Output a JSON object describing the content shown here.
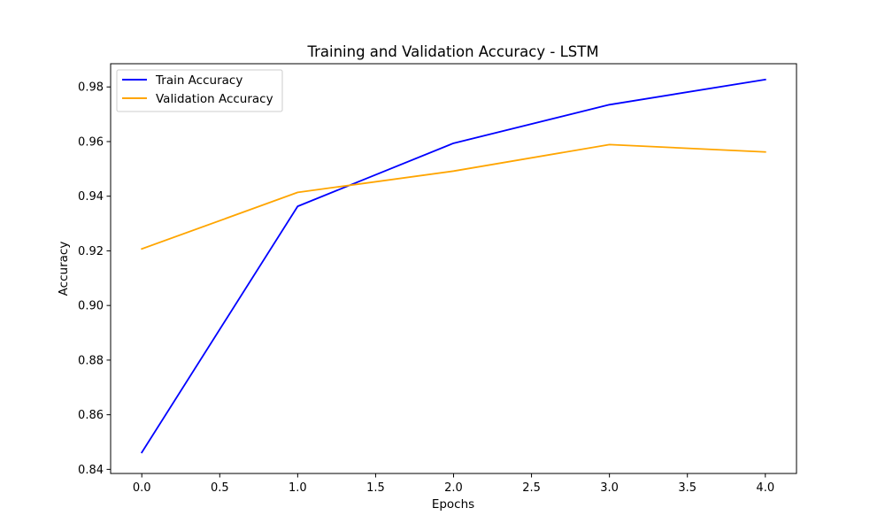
{
  "chart_data": {
    "type": "line",
    "title": "Training and Validation Accuracy - LSTM",
    "xlabel": "Epochs",
    "ylabel": "Accuracy",
    "x": [
      0,
      1,
      2,
      3,
      4
    ],
    "xlim": [
      -0.2,
      4.2
    ],
    "ylim": [
      0.8385,
      0.9885
    ],
    "xticks": [
      0.0,
      0.5,
      1.0,
      1.5,
      2.0,
      2.5,
      3.0,
      3.5,
      4.0
    ],
    "xtick_labels": [
      "0.0",
      "0.5",
      "1.0",
      "1.5",
      "2.0",
      "2.5",
      "3.0",
      "3.5",
      "4.0"
    ],
    "yticks": [
      0.84,
      0.86,
      0.88,
      0.9,
      0.92,
      0.94,
      0.96,
      0.98
    ],
    "ytick_labels": [
      "0.84",
      "0.86",
      "0.88",
      "0.90",
      "0.92",
      "0.94",
      "0.96",
      "0.98"
    ],
    "grid": false,
    "legend_position": "upper-left",
    "series": [
      {
        "name": "Train Accuracy",
        "color": "#0000ff",
        "values": [
          0.8462,
          0.9363,
          0.9594,
          0.9735,
          0.9827
        ]
      },
      {
        "name": "Validation Accuracy",
        "color": "#ffa500",
        "values": [
          0.9207,
          0.9414,
          0.9492,
          0.9589,
          0.9562
        ]
      }
    ]
  }
}
